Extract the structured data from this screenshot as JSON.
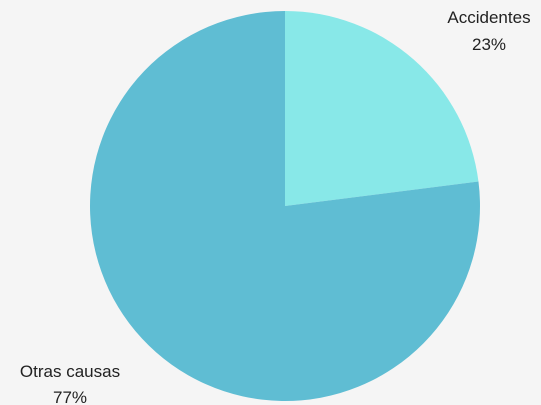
{
  "chart_data": {
    "type": "pie",
    "slices": [
      {
        "label": "Accidentes",
        "percent_label": "23%",
        "value": 23,
        "color": "#88e8e8"
      },
      {
        "label": "Otras causas",
        "percent_label": "77%",
        "value": 77,
        "color": "#5fbdd3"
      }
    ],
    "start_angle_deg": 0,
    "direction": "clockwise",
    "background": "#f5f5f5",
    "label_color": "#222222"
  }
}
